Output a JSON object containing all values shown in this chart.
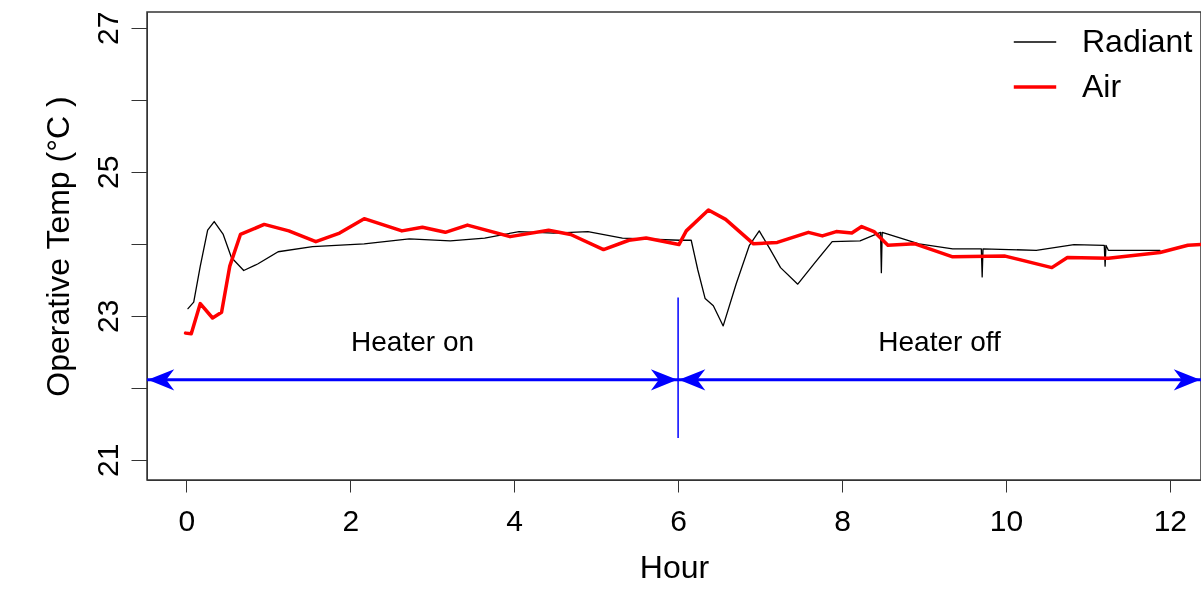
{
  "chart_data": {
    "type": "line",
    "xlabel": "Hour",
    "ylabel": "Operative Temp (°C )",
    "xlim": [
      -0.48,
      12.38
    ],
    "ylim": [
      20.72,
      27.22
    ],
    "xticks": [
      0,
      2,
      4,
      6,
      8,
      10,
      12
    ],
    "yticks": [
      21,
      {
        "value": 22,
        "label": null
      },
      23,
      {
        "value": 24,
        "label": null
      },
      25,
      {
        "value": 26,
        "label": null
      },
      27
    ],
    "grid": false,
    "legend": "top right",
    "marker": "none",
    "line_style": "solid",
    "series": [
      {
        "name": "Radiant",
        "color": "#000000",
        "x": [
          0.02,
          0.09,
          0.17,
          0.26,
          0.34,
          0.45,
          0.55,
          0.7,
          0.87,
          1.12,
          1.54,
          2.17,
          2.72,
          3.22,
          3.64,
          4.06,
          4.48,
          4.9,
          5.32,
          6.02,
          6.16,
          6.24,
          6.33,
          6.43,
          6.55,
          6.71,
          6.87,
          6.99,
          7.12,
          7.25,
          7.46,
          7.67,
          7.88,
          8.22,
          8.47,
          8.48,
          8.49,
          8.94,
          9.35,
          9.7,
          9.71,
          9.72,
          10.37,
          10.83,
          11.2,
          11.21,
          11.22,
          11.25,
          11.88
        ],
        "values": [
          23.1,
          23.19,
          23.69,
          24.19,
          24.31,
          24.13,
          23.81,
          23.63,
          23.72,
          23.89,
          23.96,
          24.0,
          24.07,
          24.04,
          24.08,
          24.17,
          24.15,
          24.17,
          24.08,
          24.05,
          24.05,
          23.64,
          23.24,
          23.14,
          22.86,
          23.45,
          23.98,
          24.18,
          23.93,
          23.67,
          23.44,
          23.74,
          24.03,
          24.04,
          24.16,
          23.6,
          24.16,
          24.0,
          23.93,
          23.93,
          23.54,
          23.93,
          23.91,
          23.99,
          23.98,
          23.69,
          23.98,
          23.91,
          23.91
        ]
      },
      {
        "name": "Air",
        "color": "#ff0000",
        "x": [
          -0.01,
          0.06,
          0.17,
          0.32,
          0.43,
          0.53,
          0.66,
          0.95,
          1.25,
          1.58,
          1.87,
          2.17,
          2.63,
          2.88,
          3.16,
          3.43,
          3.95,
          4.42,
          4.69,
          5.09,
          5.4,
          5.61,
          6.01,
          6.1,
          6.37,
          6.58,
          6.92,
          7.21,
          7.59,
          7.76,
          7.93,
          8.12,
          8.24,
          8.39,
          8.56,
          8.89,
          9.35,
          9.99,
          10.56,
          10.75,
          11.25,
          11.88,
          12.22,
          12.38
        ],
        "values": [
          22.76,
          22.75,
          23.17,
          22.97,
          23.05,
          23.69,
          24.13,
          24.27,
          24.18,
          24.03,
          24.15,
          24.35,
          24.18,
          24.23,
          24.16,
          24.26,
          24.1,
          24.19,
          24.13,
          23.92,
          24.05,
          24.08,
          23.99,
          24.18,
          24.47,
          24.34,
          24.0,
          24.02,
          24.16,
          24.11,
          24.17,
          24.15,
          24.24,
          24.17,
          23.98,
          24.0,
          23.82,
          23.83,
          23.67,
          23.81,
          23.8,
          23.88,
          23.98,
          23.99
        ]
      }
    ],
    "ref_lines": [
      {
        "axis": "x",
        "value": 6,
        "color": "#0000ff"
      }
    ],
    "annotations": [
      "Heater on",
      "Heater off"
    ]
  }
}
